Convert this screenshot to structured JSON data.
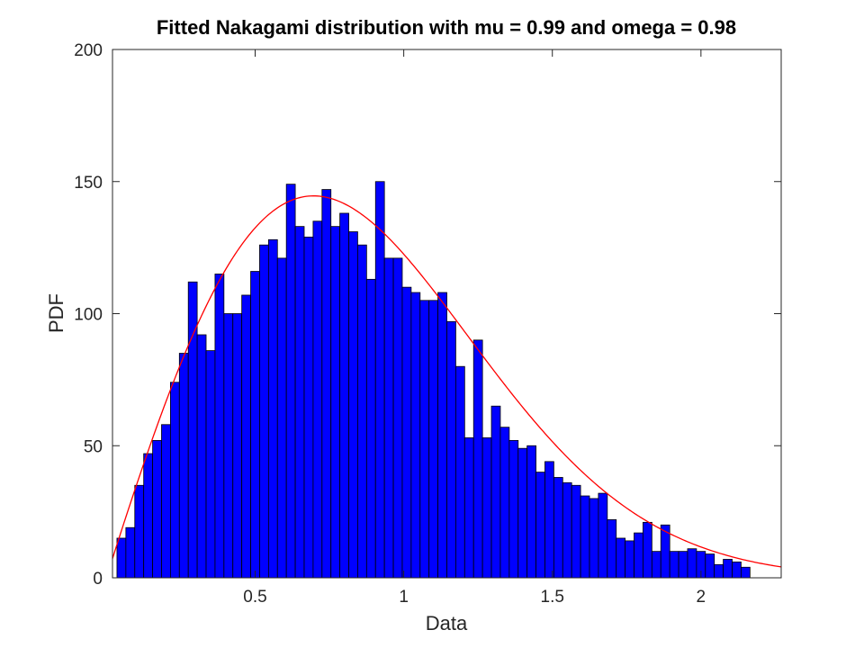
{
  "chart_data": {
    "type": "bar",
    "title": "Fitted Nakagami distribution with mu = 0.99 and omega = 0.98",
    "xlabel": "Data",
    "ylabel": "PDF",
    "xlim": [
      0.02,
      2.27
    ],
    "ylim": [
      0,
      200
    ],
    "xticks": [
      0.5,
      1,
      1.5,
      2
    ],
    "xtick_labels": [
      "0.5",
      "1",
      "1.5",
      "2"
    ],
    "yticks": [
      0,
      50,
      100,
      150,
      200
    ],
    "ytick_labels": [
      "0",
      "50",
      "100",
      "150",
      "200"
    ],
    "grid": false,
    "legend": "none",
    "bar_color": "#0000ff",
    "bar_edge_color": "#000000",
    "curve_color": "#ff0000",
    "bin_start": 0.035,
    "bin_width": 0.03,
    "values": [
      15,
      19,
      35,
      47,
      52,
      58,
      74,
      85,
      112,
      92,
      86,
      115,
      100,
      100,
      107,
      116,
      126,
      128,
      121,
      149,
      133,
      129,
      135,
      147,
      133,
      138,
      131,
      126,
      113,
      150,
      121,
      121,
      110,
      108,
      105,
      105,
      108,
      97,
      80,
      53,
      90,
      53,
      65,
      57,
      52,
      49,
      50,
      40,
      44,
      38,
      36,
      35,
      31,
      30,
      32,
      22,
      15,
      14,
      17,
      21,
      10,
      20,
      10,
      10,
      11,
      10,
      9,
      5,
      7,
      6,
      4
    ],
    "fit_curve": {
      "name": "Nakagami fit",
      "mu": 0.99,
      "omega": 0.98,
      "scale": 167.5
    }
  }
}
